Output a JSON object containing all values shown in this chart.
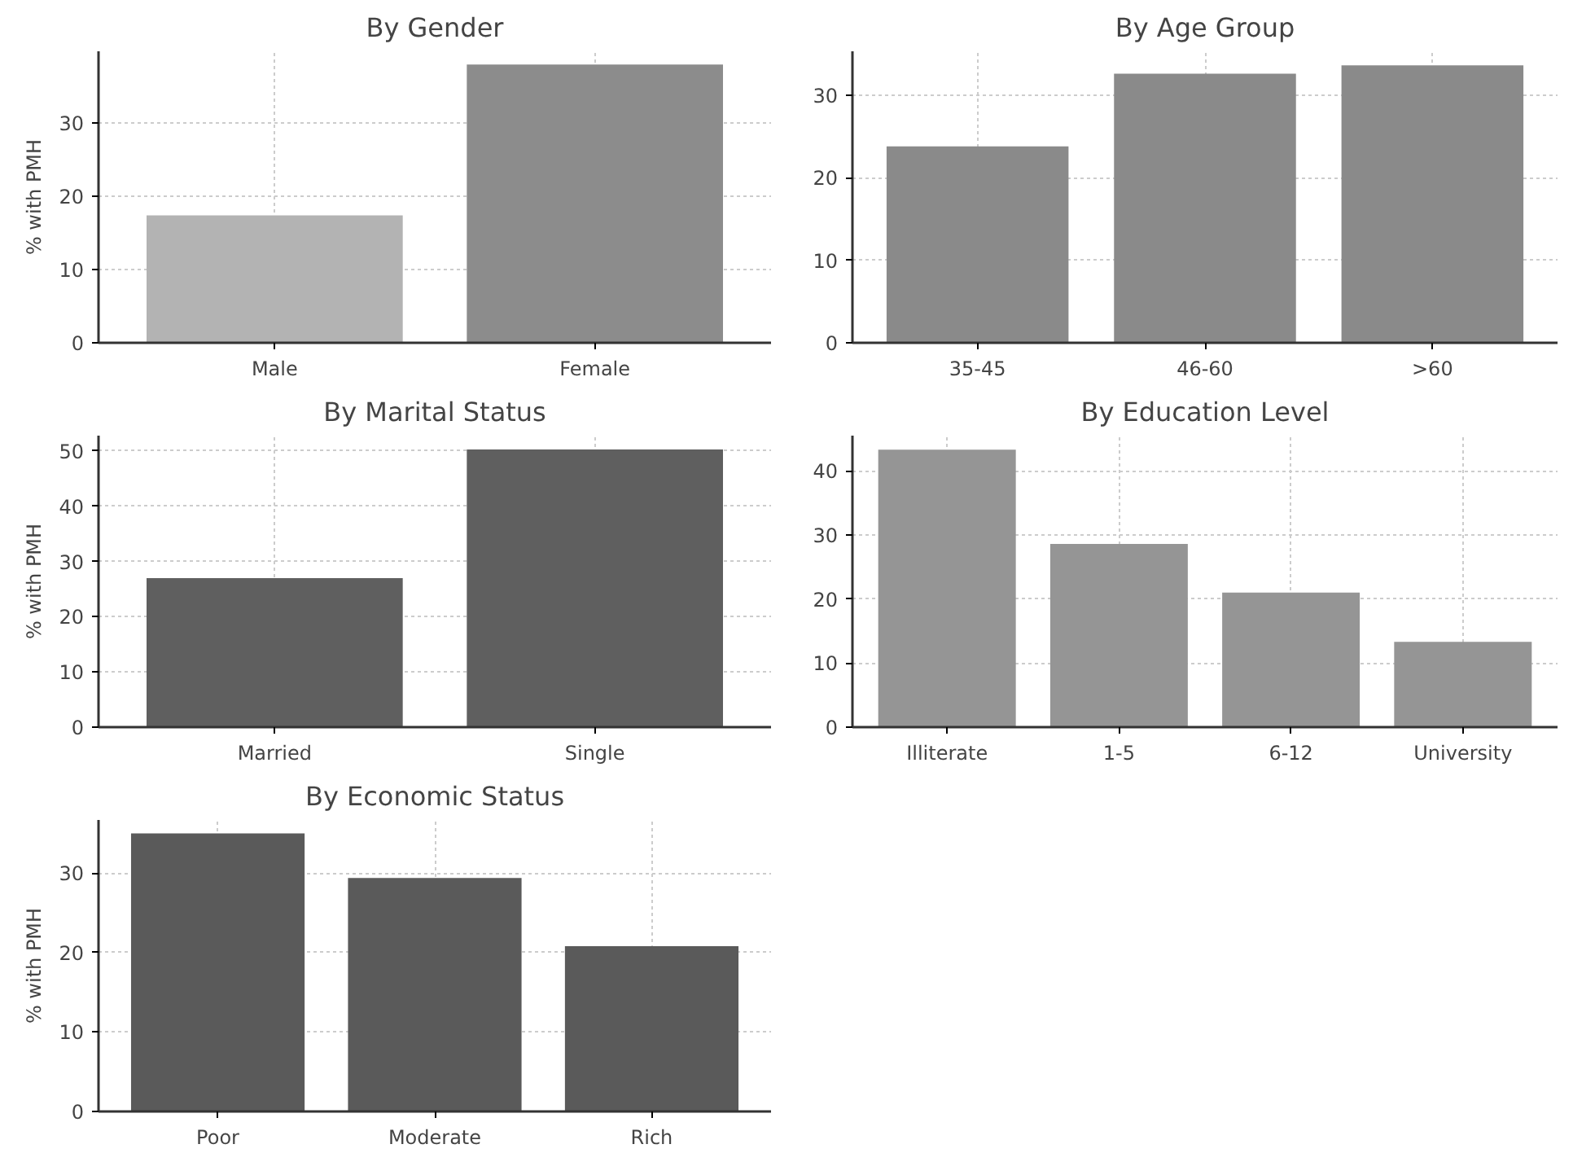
{
  "chart_data": [
    {
      "type": "bar",
      "title": "By Gender",
      "ylabel": "% with PMH",
      "categories": [
        "Male",
        "Female"
      ],
      "values": [
        17.4,
        38
      ],
      "colors": [
        "#b3b3b3",
        "#8c8c8c"
      ],
      "ylim": [
        0,
        39.8
      ],
      "yticks": [
        0,
        10,
        20,
        30
      ],
      "grid": true
    },
    {
      "type": "bar",
      "title": "By Age Group",
      "categories": [
        "35-45",
        "46-60",
        ">60"
      ],
      "values": [
        23.8,
        32.6,
        33.6
      ],
      "color": "#8a8a8a",
      "ylim": [
        0,
        35.3
      ],
      "yticks": [
        0,
        10,
        20,
        30
      ],
      "grid": true
    },
    {
      "type": "bar",
      "title": "By Marital Status",
      "ylabel": "% with PMH",
      "categories": [
        "Married",
        "Single"
      ],
      "values": [
        27,
        50.3
      ],
      "color": "#5f5f5f",
      "ylim": [
        0,
        52.8
      ],
      "yticks": [
        0,
        10,
        20,
        30,
        40,
        50
      ],
      "grid": true
    },
    {
      "type": "bar",
      "title": "By Education Level",
      "categories": [
        "Illiterate",
        "1-5",
        "6-12",
        "University"
      ],
      "values": [
        43.3,
        28.6,
        21,
        13.3
      ],
      "color": "#959595",
      "ylim": [
        0,
        45.5
      ],
      "yticks": [
        0,
        10,
        20,
        30,
        40
      ],
      "grid": true
    },
    {
      "type": "bar",
      "title": "By Economic Status",
      "ylabel": "% with PMH",
      "categories": [
        "Poor",
        "Moderate",
        "Rich"
      ],
      "values": [
        35,
        29.4,
        20.8
      ],
      "color": "#5a5a5a",
      "ylim": [
        0,
        36.7
      ],
      "yticks": [
        0,
        10,
        20,
        30
      ],
      "grid": true
    }
  ]
}
